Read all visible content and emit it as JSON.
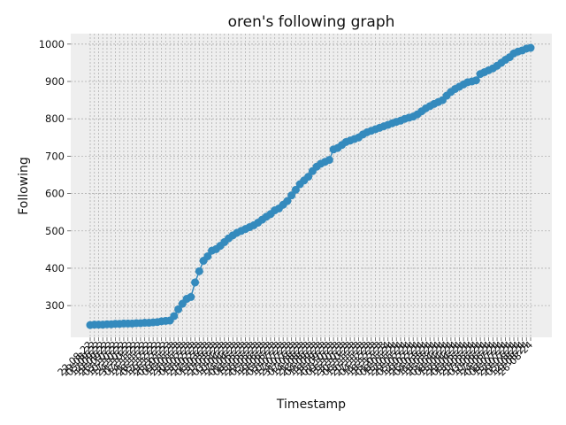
{
  "chart_data": {
    "type": "line",
    "title": "oren's following graph",
    "xlabel": "Timestamp",
    "ylabel": "Following",
    "ylim": [
      215,
      1028
    ],
    "yticks": [
      300,
      400,
      500,
      600,
      700,
      800,
      900,
      1000
    ],
    "grid": true,
    "x_tick_labels": [
      "22-08-22",
      "29-08-22",
      "05-09-22",
      "12-09-22",
      "19-09-22",
      "26-09-22",
      "03-10-22",
      "10-10-22",
      "17-10-22",
      "24-10-22",
      "31-10-22",
      "07-11-22",
      "14-11-22",
      "21-11-22",
      "28-11-22",
      "05-12-22",
      "12-12-22",
      "19-12-22",
      "26-12-22",
      "02-01-23",
      "09-01-23",
      "16-01-23",
      "23-01-23",
      "30-01-23",
      "06-02-23",
      "13-02-23",
      "20-02-23",
      "27-02-23",
      "06-03-23",
      "13-03-23",
      "20-03-23",
      "27-03-23",
      "03-04-23",
      "10-04-23",
      "17-04-23",
      "24-04-23",
      "01-05-23",
      "08-05-23",
      "15-05-23",
      "22-05-23",
      "29-05-23",
      "05-06-23",
      "12-06-23",
      "19-06-23",
      "26-06-23",
      "03-07-23",
      "10-07-23",
      "17-07-23",
      "24-07-23",
      "31-07-23",
      "07-08-23",
      "14-08-23",
      "21-08-23",
      "28-08-23",
      "04-09-23",
      "11-09-23",
      "18-09-23",
      "25-09-23",
      "02-10-23",
      "09-10-23",
      "16-10-23",
      "23-10-23",
      "30-10-23",
      "06-11-23",
      "13-11-23",
      "20-11-23",
      "27-11-23",
      "04-12-23",
      "11-12-23",
      "18-12-23",
      "25-12-23",
      "01-01-24",
      "08-01-24",
      "15-01-24",
      "22-01-24",
      "29-01-24",
      "05-02-24",
      "12-02-24",
      "19-02-24",
      "26-02-24",
      "04-03-24",
      "11-03-24",
      "18-03-24",
      "25-03-24",
      "01-04-24",
      "08-04-24",
      "15-04-24",
      "22-04-24",
      "29-04-24",
      "06-05-24",
      "13-05-24",
      "20-05-24",
      "27-05-24",
      "03-06-24",
      "10-06-24",
      "17-06-24",
      "24-06-24",
      "01-07-24",
      "08-07-24",
      "15-07-24",
      "22-07-24",
      "29-07-24",
      "05-08-24",
      "12-08-24",
      "19-08-24",
      "26-08-24"
    ],
    "series": [
      {
        "color": "#348ABD",
        "values": [
          248,
          249,
          249,
          249,
          250,
          250,
          251,
          251,
          252,
          252,
          252,
          253,
          253,
          254,
          254,
          255,
          256,
          258,
          259,
          260,
          272,
          290,
          305,
          318,
          323,
          362,
          392,
          420,
          432,
          447,
          451,
          460,
          470,
          480,
          488,
          495,
          500,
          505,
          510,
          515,
          522,
          530,
          538,
          545,
          555,
          560,
          570,
          580,
          595,
          610,
          625,
          635,
          645,
          660,
          672,
          680,
          685,
          690,
          718,
          722,
          730,
          738,
          742,
          746,
          750,
          758,
          764,
          768,
          772,
          776,
          780,
          784,
          788,
          792,
          795,
          800,
          803,
          806,
          812,
          820,
          828,
          834,
          840,
          845,
          850,
          862,
          872,
          880,
          886,
          892,
          898,
          900,
          903,
          920,
          925,
          930,
          935,
          942,
          950,
          958,
          965,
          975,
          980,
          983,
          988,
          990
        ]
      }
    ]
  }
}
